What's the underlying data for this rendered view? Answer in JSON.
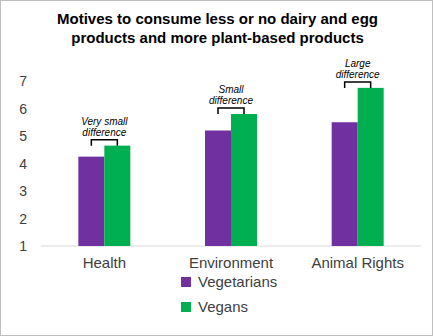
{
  "chart_data": {
    "type": "bar",
    "title": "Motives to consume less or no dairy and egg products and more plant-based products",
    "categories": [
      "Health",
      "Environment",
      "Animal Rights"
    ],
    "series": [
      {
        "name": "Vegetarians",
        "color": "#7030a0",
        "values": [
          4.25,
          5.2,
          5.5
        ]
      },
      {
        "name": "Vegans",
        "color": "#00b050",
        "values": [
          4.65,
          5.8,
          6.75
        ]
      }
    ],
    "annotations": [
      "Very small difference",
      "Small difference",
      "Large difference"
    ],
    "ylim": [
      1,
      7
    ],
    "yticks": [
      1,
      2,
      3,
      4,
      5,
      6,
      7
    ],
    "grid": false,
    "legend": "bottom"
  }
}
